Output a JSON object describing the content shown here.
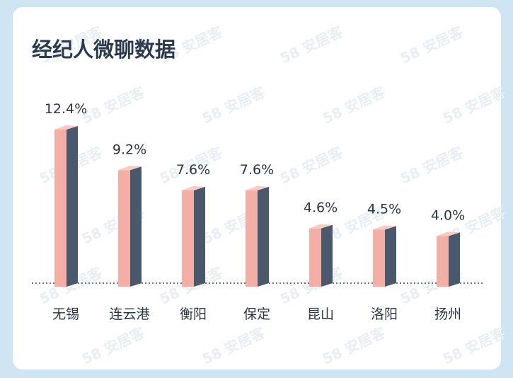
{
  "chart_data": {
    "type": "bar3d",
    "title": "经纪人微聊数据",
    "watermark": "58 安居客",
    "categories": [
      "无锡",
      "连云港",
      "衡阳",
      "保定",
      "昆山",
      "洛阳",
      "扬州"
    ],
    "values": [
      12.4,
      9.2,
      7.6,
      7.6,
      4.6,
      4.5,
      4.0
    ],
    "value_labels": [
      "12.4%",
      "9.2%",
      "7.6%",
      "7.6%",
      "4.6%",
      "4.5%",
      "4.0%"
    ],
    "colors": {
      "front": "#f3aea6",
      "side": "#4a586c",
      "top": "#f8cbc5"
    }
  }
}
